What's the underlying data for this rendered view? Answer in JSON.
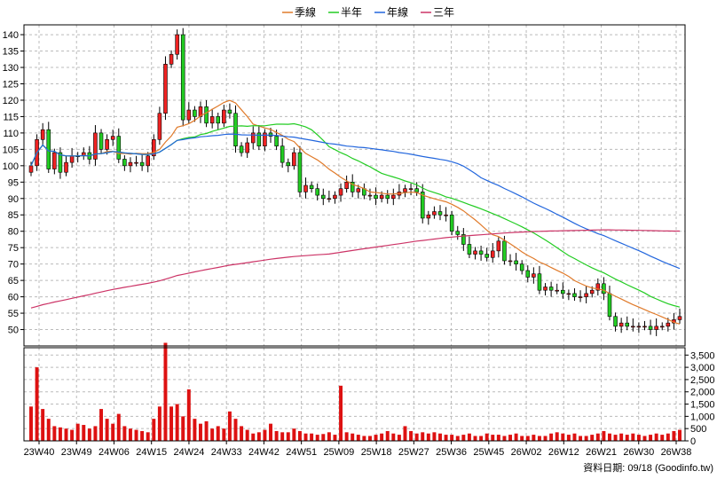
{
  "legend": [
    {
      "label": "季線",
      "color": "#e07a2a"
    },
    {
      "label": "半年",
      "color": "#22cc22"
    },
    {
      "label": "年線",
      "color": "#2266dd"
    },
    {
      "label": "三年",
      "color": "#cc3366"
    }
  ],
  "footer": "資料日期: 09/18  (Goodinfo.tw)",
  "chart_data": {
    "type": "candlestick",
    "x_ticks": [
      "23W40",
      "23W49",
      "24W06",
      "24W15",
      "24W24",
      "24W33",
      "24W42",
      "24W51",
      "25W09",
      "25W18",
      "25W27",
      "25W36",
      "25W45",
      "26W02",
      "26W12",
      "26W21",
      "26W30",
      "26W38"
    ],
    "price_axis": {
      "min": 45,
      "max": 143,
      "ticks": [
        50,
        55,
        60,
        65,
        70,
        75,
        80,
        85,
        90,
        95,
        100,
        105,
        110,
        115,
        120,
        125,
        130,
        135,
        140
      ]
    },
    "volume_axis": {
      "min": 0,
      "max": 3800,
      "ticks": [
        0,
        500,
        1000,
        1500,
        2000,
        2500,
        3000,
        3500
      ],
      "tick_labels": [
        "0",
        "500",
        "1,000",
        "1,500",
        "2,000",
        "2,500",
        "3,000",
        "3,500"
      ]
    },
    "colors": {
      "up": "#ee2222",
      "down": "#22cc22",
      "volume": "#dd1111",
      "grid": "#bbbbbb"
    },
    "close": [
      100,
      108,
      111,
      99,
      104,
      98,
      101,
      103,
      103,
      104,
      102,
      110,
      105,
      108,
      109,
      102,
      100,
      101,
      101,
      100,
      103,
      108,
      116,
      131,
      134,
      140,
      114,
      117,
      115,
      118,
      113,
      115,
      113,
      117,
      116,
      106,
      104,
      107,
      110,
      106,
      110,
      109,
      106,
      101,
      100,
      104,
      92,
      94,
      93,
      91,
      90,
      90,
      91,
      93,
      95,
      92,
      93,
      91,
      91,
      90,
      91,
      90,
      91,
      92,
      93,
      93,
      92,
      84,
      85,
      86,
      85,
      85,
      80,
      79,
      76,
      73,
      74,
      73,
      72,
      74,
      77,
      71,
      71,
      70,
      68,
      66,
      67,
      62,
      63,
      62,
      62,
      61,
      61,
      60,
      60,
      61,
      62,
      64,
      61,
      54,
      51,
      52,
      51,
      51,
      51,
      51,
      50,
      51,
      51,
      52,
      53,
      54
    ],
    "volume": [
      1400,
      3000,
      1300,
      900,
      600,
      550,
      500,
      450,
      700,
      650,
      500,
      600,
      1300,
      900,
      700,
      1100,
      600,
      500,
      450,
      400,
      350,
      900,
      1400,
      4000,
      1400,
      1500,
      1000,
      2100,
      900,
      700,
      800,
      500,
      600,
      500,
      1200,
      900,
      600,
      450,
      300,
      350,
      450,
      700,
      400,
      350,
      350,
      500,
      400,
      300,
      300,
      250,
      280,
      350,
      250,
      2250,
      350,
      300,
      250,
      200,
      200,
      250,
      300,
      400,
      300,
      250,
      600,
      400,
      300,
      350,
      300,
      350,
      300,
      250,
      250,
      200,
      250,
      300,
      200,
      200,
      300,
      250,
      250,
      200,
      250,
      300,
      200,
      200,
      250,
      200,
      200,
      300,
      350,
      300,
      250,
      300,
      200,
      200,
      250,
      300,
      400,
      300,
      250,
      300,
      250,
      300,
      250,
      200,
      250,
      300,
      250,
      300,
      400,
      450
    ]
  }
}
